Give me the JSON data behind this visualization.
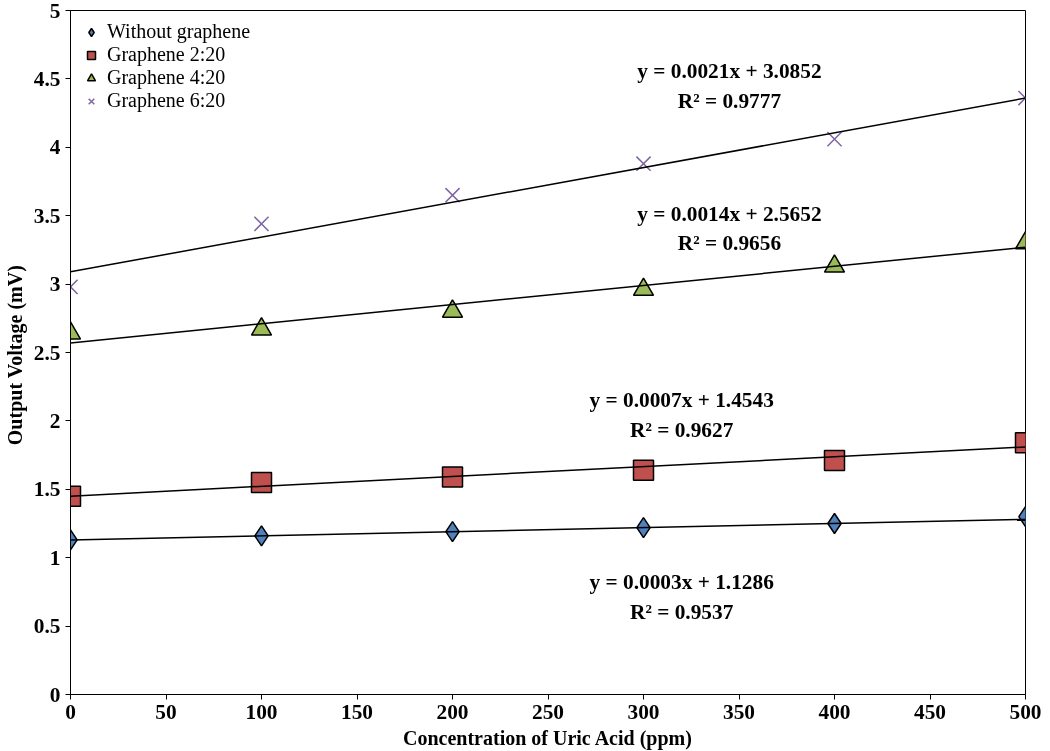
{
  "chart_data": {
    "type": "scatter",
    "xlabel": "Concentration of Uric Acid (ppm)",
    "ylabel": "Output Voltage  (mV)",
    "x": [
      0,
      100,
      200,
      300,
      400,
      500
    ],
    "xlim": [
      0,
      500
    ],
    "xticks": [
      0,
      50,
      100,
      150,
      200,
      250,
      300,
      350,
      400,
      450,
      500
    ],
    "ylim": [
      0,
      5
    ],
    "yticks": [
      0,
      0.5,
      1,
      1.5,
      2,
      2.5,
      3,
      3.5,
      4,
      4.5,
      5
    ],
    "grid": false,
    "legend": "top left",
    "series": [
      {
        "name": "Without graphene",
        "color": "#4f81bd",
        "marker": "diamond",
        "values": [
          1.13,
          1.16,
          1.19,
          1.22,
          1.25,
          1.3
        ]
      },
      {
        "name": "Graphene 2:20",
        "color": "#c0504d",
        "marker": "square",
        "values": [
          1.45,
          1.55,
          1.59,
          1.64,
          1.71,
          1.84
        ]
      },
      {
        "name": "Graphene 4:20",
        "color": "#9bbb59",
        "marker": "triangle",
        "values": [
          2.64,
          2.67,
          2.8,
          2.96,
          3.13,
          3.3
        ]
      },
      {
        "name": "Graphene 6:20",
        "color": "#8064a2",
        "marker": "cross",
        "values": [
          2.98,
          3.44,
          3.65,
          3.88,
          4.06,
          4.36
        ]
      },
      {
        "type": "line",
        "color": "#000000",
        "marker": "none",
        "values": [
          1.13,
          null,
          null,
          null,
          null,
          1.28
        ]
      },
      {
        "type": "line",
        "color": "#000000",
        "marker": "none",
        "values": [
          1.45,
          null,
          null,
          null,
          null,
          1.81
        ]
      },
      {
        "type": "line",
        "color": "#000000",
        "marker": "none",
        "values": [
          2.57,
          null,
          null,
          null,
          null,
          3.27
        ]
      },
      {
        "type": "line",
        "color": "#000000",
        "marker": "none",
        "values": [
          3.09,
          null,
          null,
          null,
          null,
          4.36
        ]
      }
    ],
    "annotations": [
      "y = 0.0021x + 3.0852",
      "R² = 0.9777",
      "y = 0.0014x + 2.5652",
      "R² = 0.9656",
      "y = 0.0007x + 1.4543",
      "R² = 0.9627",
      "y = 0.0003x + 1.1286",
      "R² = 0.9537"
    ]
  }
}
